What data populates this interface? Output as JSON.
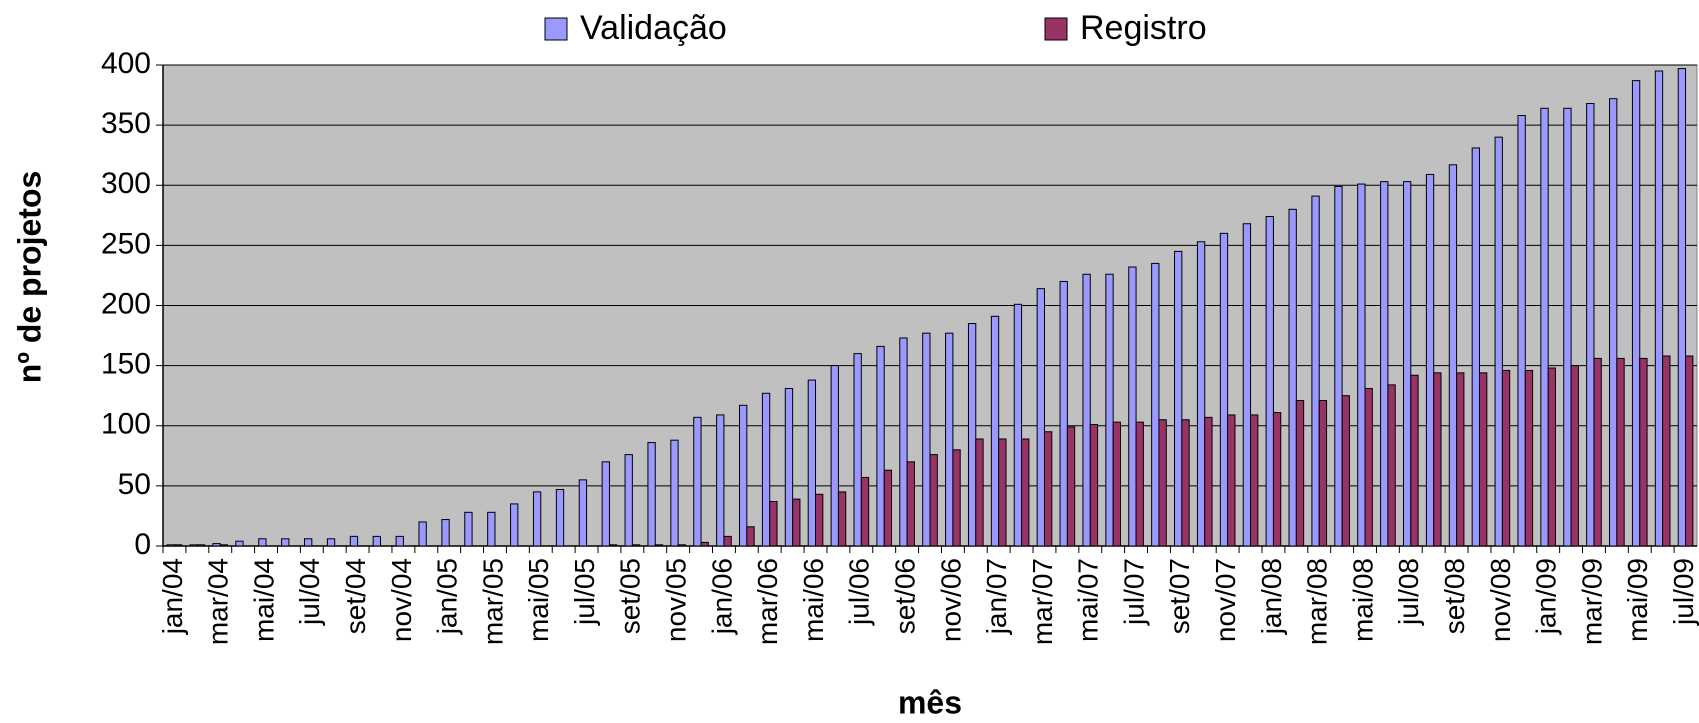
{
  "chart_data": {
    "type": "bar",
    "categories": [
      "jan/04",
      null,
      "mar/04",
      null,
      "mai/04",
      null,
      "jul/04",
      null,
      "set/04",
      null,
      "nov/04",
      null,
      "jan/05",
      null,
      "mar/05",
      null,
      "mai/05",
      null,
      "jul/05",
      null,
      "set/05",
      null,
      "nov/05",
      null,
      "jan/06",
      null,
      "mar/06",
      null,
      "mai/06",
      null,
      "jul/06",
      null,
      "set/06",
      null,
      "nov/06",
      null,
      "jan/07",
      null,
      "mar/07",
      null,
      "mai/07",
      null,
      "jul/07",
      null,
      "set/07",
      null,
      "nov/07",
      null,
      "jan/08",
      null,
      "mar/08",
      null,
      "mai/08",
      null,
      "jul/08",
      null,
      "set/08",
      null,
      "nov/08",
      null,
      "jan/09",
      null,
      "mar/09",
      null,
      "mai/09",
      null,
      "jul/09"
    ],
    "series": [
      {
        "name": "Validação",
        "color": "#9999ff",
        "values": [
          1,
          1,
          2,
          4,
          6,
          6,
          6,
          6,
          8,
          8,
          8,
          20,
          22,
          28,
          28,
          35,
          45,
          47,
          55,
          70,
          76,
          86,
          88,
          107,
          109,
          117,
          127,
          131,
          138,
          150,
          160,
          166,
          173,
          177,
          177,
          185,
          191,
          201,
          214,
          220,
          226,
          226,
          232,
          235,
          245,
          253,
          260,
          268,
          274,
          280,
          291,
          299,
          301,
          303,
          303,
          309,
          317,
          331,
          340,
          358,
          364,
          364,
          368,
          372,
          387,
          395,
          397
        ]
      },
      {
        "name": "Registro",
        "color": "#993366",
        "values": [
          1,
          1,
          1,
          0,
          0,
          0,
          0,
          0,
          0,
          0,
          0,
          0,
          0,
          0,
          0,
          0,
          0,
          0,
          0,
          1,
          1,
          1,
          1,
          3,
          8,
          16,
          37,
          39,
          43,
          45,
          57,
          63,
          70,
          76,
          80,
          89,
          89,
          89,
          95,
          99,
          101,
          103,
          103,
          105,
          105,
          107,
          109,
          109,
          111,
          121,
          121,
          125,
          131,
          134,
          142,
          144,
          144,
          144,
          146,
          146,
          148,
          150,
          156,
          156,
          156,
          158,
          158
        ]
      }
    ],
    "xlabel": "mês",
    "ylabel": "nº de projetos",
    "ylim": [
      0,
      400
    ],
    "yticks": [
      0,
      50,
      100,
      150,
      200,
      250,
      300,
      350,
      400
    ],
    "grid": true,
    "legend": "top",
    "background": "#c0c0c0"
  }
}
